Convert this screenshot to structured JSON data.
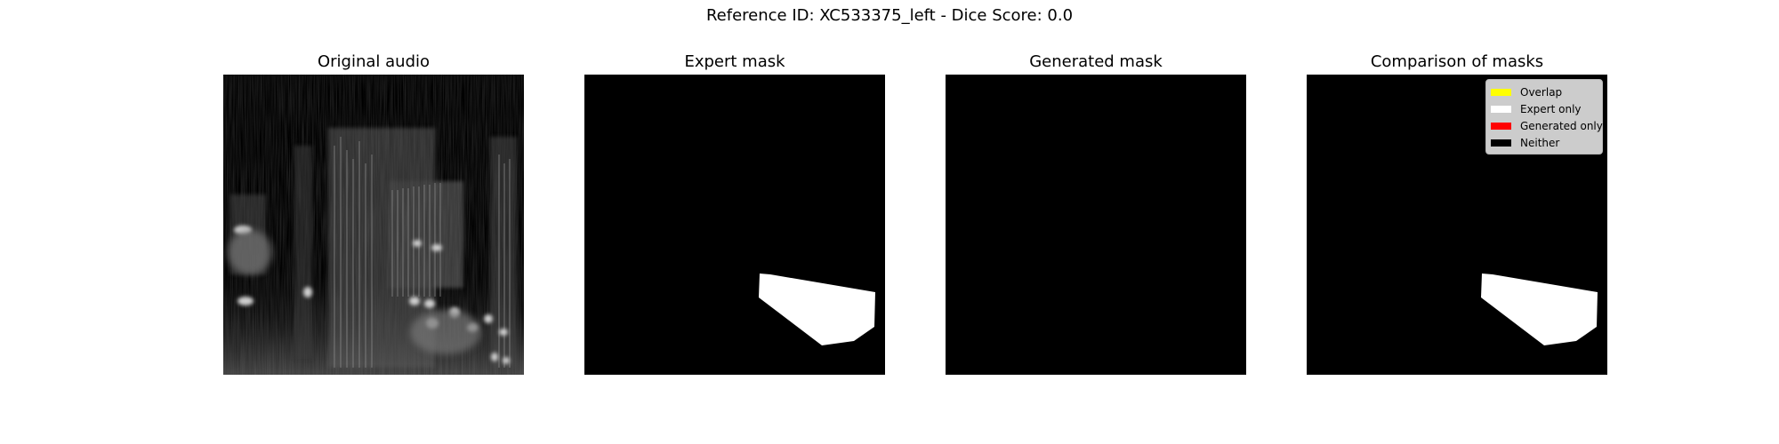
{
  "figure": {
    "suptitle": "Reference ID: XC533375_left - Dice Score: 0.0"
  },
  "panels": [
    {
      "title": "Original audio",
      "content": "spectrogram"
    },
    {
      "title": "Expert mask",
      "content": "mask-expert"
    },
    {
      "title": "Generated mask",
      "content": "mask-empty"
    },
    {
      "title": "Comparison of masks",
      "content": "mask-comparison"
    }
  ],
  "legend": {
    "items": [
      {
        "label": "Overlap",
        "color": "#ffff00"
      },
      {
        "label": "Expert only",
        "color": "#ffffff"
      },
      {
        "label": "Generated only",
        "color": "#ff0000"
      },
      {
        "label": "Neither",
        "color": "#000000"
      }
    ]
  },
  "colors": {
    "mask_background": "#000000",
    "expert_mask_fill": "#ffffff"
  }
}
